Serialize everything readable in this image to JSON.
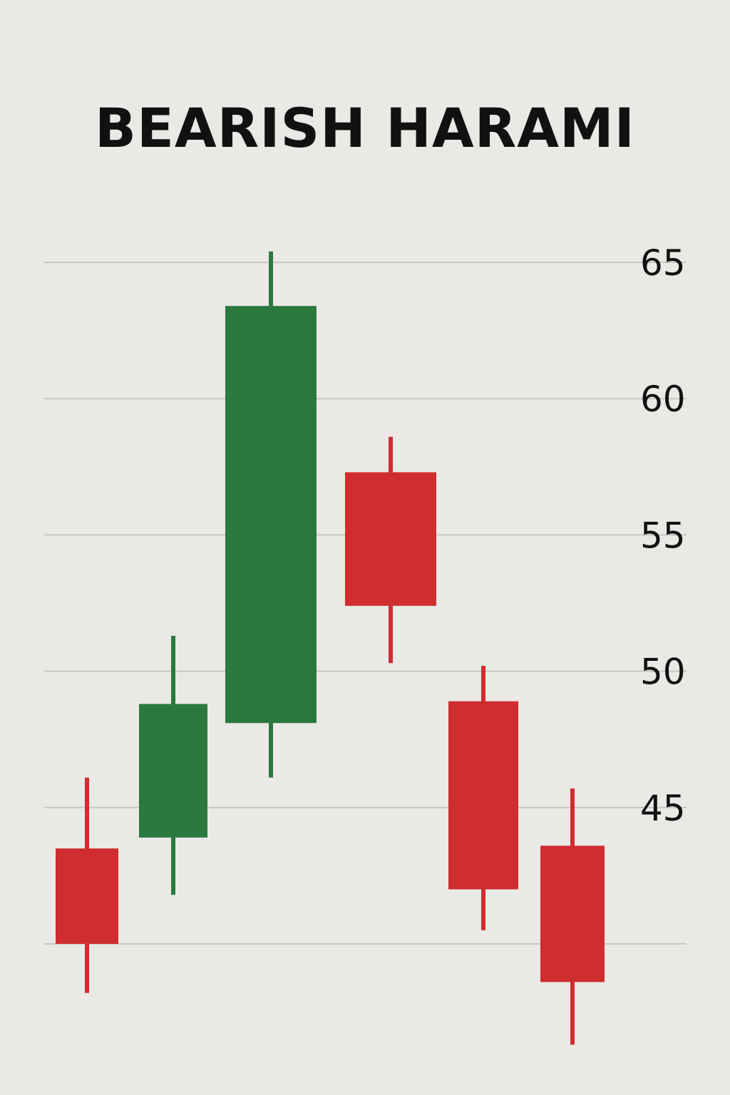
{
  "chart_data": {
    "type": "candlestick",
    "title": "BEARISH HARAMI",
    "xlabel": "",
    "ylabel": "",
    "ylim": [
      38,
      67
    ],
    "grid": true,
    "yticks": [
      40,
      45,
      50,
      55,
      60,
      65
    ],
    "ytick_labels": [
      "",
      "45",
      "50",
      "55",
      "60",
      "65"
    ],
    "axis_position": "right",
    "candles": [
      {
        "open": 43.5,
        "high": 46.1,
        "low": 38.2,
        "close": 40.0
      },
      {
        "open": 43.9,
        "high": 51.3,
        "low": 41.8,
        "close": 48.8
      },
      {
        "open": 48.1,
        "high": 65.4,
        "low": 46.1,
        "close": 63.4
      },
      {
        "open": 57.3,
        "high": 58.6,
        "low": 50.3,
        "close": 52.4
      },
      {
        "open": 48.9,
        "high": 50.2,
        "low": 40.5,
        "close": 42.0
      },
      {
        "open": 43.6,
        "high": 45.7,
        "low": 36.3,
        "close": 38.6
      }
    ],
    "colors": {
      "up": "#2a7a40",
      "down": "#cf2d2f",
      "grid": "#c8c6c2"
    }
  }
}
